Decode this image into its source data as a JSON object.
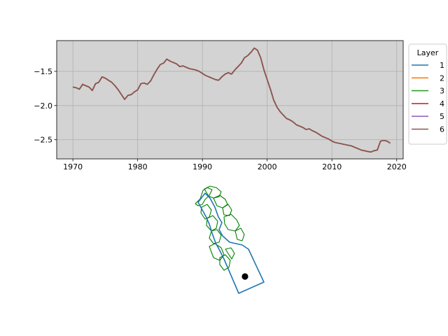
{
  "chart_data": [
    {
      "type": "line",
      "title": "",
      "xlabel": "",
      "ylabel": "",
      "xlim": [
        1967.5,
        2021.0
      ],
      "ylim": [
        -2.78,
        -1.05
      ],
      "xticks": [
        1970,
        1980,
        1990,
        2000,
        2010,
        2020
      ],
      "yticks": [
        -2.5,
        -2.0,
        -1.5
      ],
      "ytick_labels": [
        "−2.5",
        "−2.0",
        "−1.5"
      ],
      "grid": true,
      "background": "#d3d3d3",
      "legend": {
        "title": "Layer",
        "placement": "outside-right-top",
        "entries": [
          {
            "label": "1",
            "color": "#1f77b4"
          },
          {
            "label": "2",
            "color": "#ff7f0e"
          },
          {
            "label": "3",
            "color": "#2ca02c"
          },
          {
            "label": "4",
            "color": "#d62728"
          },
          {
            "label": "5",
            "color": "#9467bd"
          },
          {
            "label": "6",
            "color": "#8c564b"
          }
        ]
      },
      "series": [
        {
          "name": "1",
          "color": "#1f77b4",
          "offset": 0.0
        },
        {
          "name": "2",
          "color": "#ff7f0e",
          "offset": 0.0
        },
        {
          "name": "3",
          "color": "#2ca02c",
          "offset": 0.0
        },
        {
          "name": "4",
          "color": "#d62728",
          "offset": 0.0
        },
        {
          "name": "5",
          "color": "#9467bd",
          "offset": 0.0
        },
        {
          "name": "6",
          "color": "#8c564b",
          "offset": 0.0
        }
      ],
      "x": [
        1970.0,
        1970.5,
        1971.0,
        1971.5,
        1972.0,
        1972.5,
        1973.0,
        1973.5,
        1974.0,
        1974.5,
        1975.0,
        1975.5,
        1976.0,
        1976.5,
        1977.0,
        1977.5,
        1978.0,
        1978.5,
        1979.0,
        1979.5,
        1980.0,
        1980.5,
        1981.0,
        1981.5,
        1982.0,
        1982.5,
        1983.0,
        1983.5,
        1984.0,
        1984.5,
        1985.0,
        1985.5,
        1986.0,
        1986.5,
        1987.0,
        1987.5,
        1988.0,
        1988.5,
        1989.0,
        1989.5,
        1990.0,
        1990.5,
        1991.0,
        1991.5,
        1992.0,
        1992.5,
        1993.0,
        1993.5,
        1994.0,
        1994.5,
        1995.0,
        1995.5,
        1996.0,
        1996.5,
        1997.0,
        1997.5,
        1998.0,
        1998.5,
        1999.0,
        1999.5,
        2000.0,
        2000.5,
        2001.0,
        2001.5,
        2002.0,
        2002.5,
        2003.0,
        2003.5,
        2004.0,
        2004.5,
        2005.0,
        2005.5,
        2006.0,
        2006.5,
        2007.0,
        2007.5,
        2008.0,
        2008.5,
        2009.0,
        2009.5,
        2010.0,
        2010.5,
        2011.0,
        2011.5,
        2012.0,
        2012.5,
        2013.0,
        2013.5,
        2014.0,
        2014.5,
        2015.0,
        2015.5,
        2016.0,
        2016.5,
        2017.0,
        2017.5,
        2018.0,
        2018.5,
        2019.0
      ],
      "y": [
        -1.73,
        -1.74,
        -1.76,
        -1.69,
        -1.71,
        -1.73,
        -1.78,
        -1.68,
        -1.66,
        -1.58,
        -1.6,
        -1.63,
        -1.66,
        -1.71,
        -1.77,
        -1.84,
        -1.91,
        -1.85,
        -1.84,
        -1.8,
        -1.77,
        -1.68,
        -1.67,
        -1.69,
        -1.64,
        -1.55,
        -1.47,
        -1.4,
        -1.38,
        -1.32,
        -1.35,
        -1.37,
        -1.39,
        -1.43,
        -1.42,
        -1.44,
        -1.46,
        -1.47,
        -1.48,
        -1.5,
        -1.53,
        -1.56,
        -1.58,
        -1.6,
        -1.62,
        -1.63,
        -1.58,
        -1.54,
        -1.52,
        -1.54,
        -1.48,
        -1.43,
        -1.38,
        -1.3,
        -1.27,
        -1.22,
        -1.16,
        -1.19,
        -1.3,
        -1.48,
        -1.62,
        -1.76,
        -1.92,
        -2.02,
        -2.09,
        -2.14,
        -2.19,
        -2.21,
        -2.24,
        -2.28,
        -2.3,
        -2.32,
        -2.35,
        -2.34,
        -2.37,
        -2.39,
        -2.42,
        -2.45,
        -2.47,
        -2.49,
        -2.52,
        -2.54,
        -2.55,
        -2.56,
        -2.57,
        -2.58,
        -2.59,
        -2.61,
        -2.63,
        -2.65,
        -2.66,
        -2.67,
        -2.68,
        -2.66,
        -2.65,
        -2.52,
        -2.51,
        -2.52,
        -2.55
      ]
    },
    {
      "type": "map",
      "title": "",
      "description_colors": {
        "boundary": "#1f77b4",
        "subregions": "#008000",
        "point": "#000000"
      }
    }
  ]
}
